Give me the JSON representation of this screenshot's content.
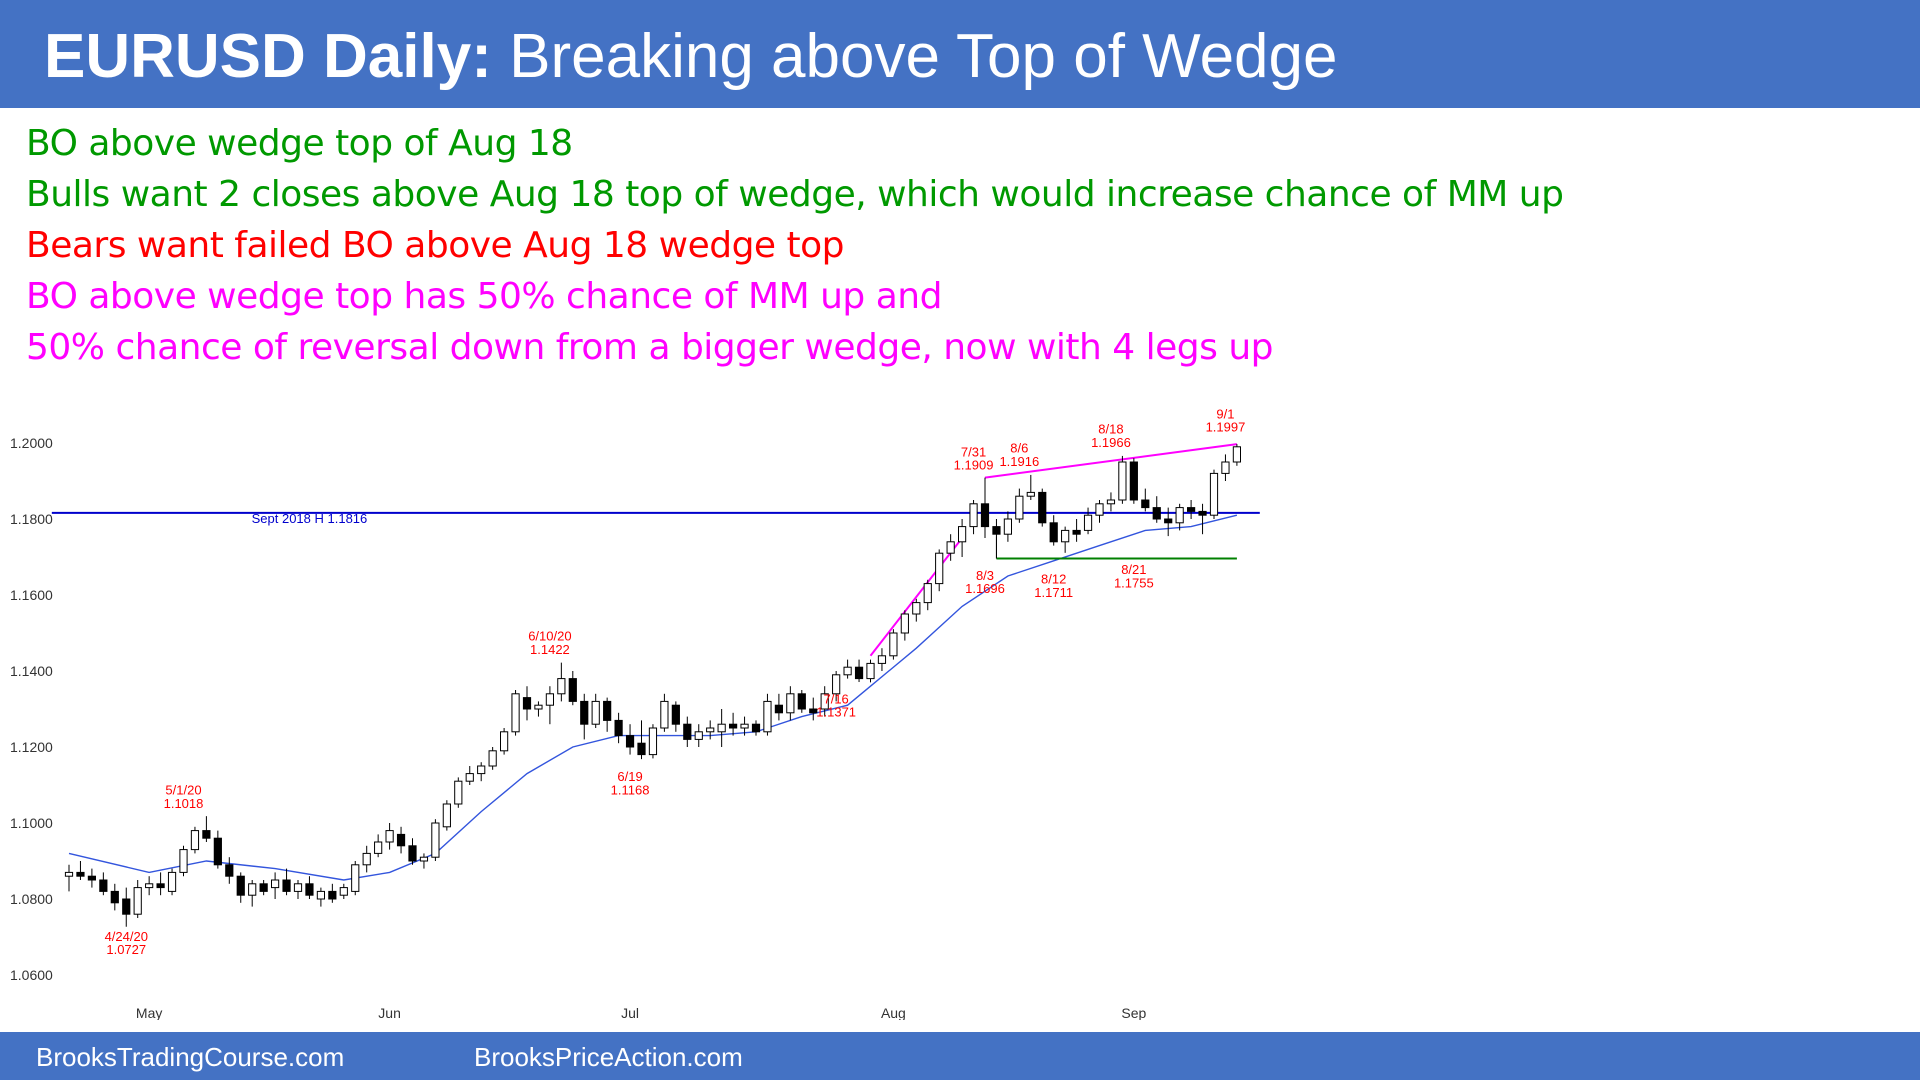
{
  "header": {
    "title_bold": "EURUSD Daily:",
    "title_rest": " Breaking above Top of Wedge",
    "bg_color": "#4472c4"
  },
  "notes": [
    {
      "text": "BO above wedge top of Aug 18",
      "color": "#009900"
    },
    {
      "text": "Bulls want  2 closes above Aug 18 top of wedge, which would increase chance of MM up",
      "color": "#009900"
    },
    {
      "text": "Bears want failed BO above Aug 18 wedge top",
      "color": "#ff0000"
    },
    {
      "text": "BO above wedge top has 50% chance of MM up and",
      "color": "#ff00ff"
    },
    {
      "text": "50% chance of reversal down from a bigger wedge, now with 4 legs up",
      "color": "#ff00ff"
    }
  ],
  "chart_data": {
    "type": "candlestick",
    "symbol": "EURUSD",
    "timeframe": "Daily",
    "ylim": [
      1.06,
      1.205
    ],
    "y_ticks": [
      "1.0600",
      "1.0800",
      "1.1000",
      "1.1200",
      "1.1400",
      "1.1600",
      "1.1800",
      "1.2000"
    ],
    "x_ticks": [
      {
        "label": "May",
        "bar": 7
      },
      {
        "label": "Jun",
        "bar": 28
      },
      {
        "label": "Jul",
        "bar": 49
      },
      {
        "label": "Aug",
        "bar": 72
      },
      {
        "label": "Sep",
        "bar": 93
      }
    ],
    "candles": [
      [
        1.086,
        1.089,
        1.082,
        1.087
      ],
      [
        1.087,
        1.09,
        1.085,
        1.086
      ],
      [
        1.086,
        1.088,
        1.083,
        1.085
      ],
      [
        1.085,
        1.087,
        1.081,
        1.082
      ],
      [
        1.082,
        1.084,
        1.077,
        1.079
      ],
      [
        1.08,
        1.083,
        1.0727,
        1.076
      ],
      [
        1.076,
        1.085,
        1.075,
        1.083
      ],
      [
        1.083,
        1.086,
        1.081,
        1.084
      ],
      [
        1.084,
        1.087,
        1.081,
        1.083
      ],
      [
        1.082,
        1.088,
        1.081,
        1.087
      ],
      [
        1.087,
        1.094,
        1.086,
        1.093
      ],
      [
        1.093,
        1.099,
        1.092,
        1.098
      ],
      [
        1.098,
        1.1018,
        1.095,
        1.096
      ],
      [
        1.096,
        1.098,
        1.088,
        1.089
      ],
      [
        1.089,
        1.091,
        1.084,
        1.086
      ],
      [
        1.086,
        1.087,
        1.079,
        1.081
      ],
      [
        1.081,
        1.085,
        1.078,
        1.084
      ],
      [
        1.084,
        1.085,
        1.081,
        1.082
      ],
      [
        1.083,
        1.087,
        1.08,
        1.085
      ],
      [
        1.085,
        1.088,
        1.081,
        1.082
      ],
      [
        1.082,
        1.085,
        1.08,
        1.084
      ],
      [
        1.084,
        1.086,
        1.08,
        1.081
      ],
      [
        1.08,
        1.083,
        1.078,
        1.082
      ],
      [
        1.082,
        1.084,
        1.079,
        1.08
      ],
      [
        1.081,
        1.084,
        1.08,
        1.083
      ],
      [
        1.082,
        1.09,
        1.081,
        1.089
      ],
      [
        1.089,
        1.094,
        1.087,
        1.092
      ],
      [
        1.092,
        1.097,
        1.091,
        1.095
      ],
      [
        1.095,
        1.1,
        1.093,
        1.098
      ],
      [
        1.097,
        1.099,
        1.092,
        1.094
      ],
      [
        1.094,
        1.096,
        1.089,
        1.09
      ],
      [
        1.09,
        1.092,
        1.088,
        1.091
      ],
      [
        1.091,
        1.101,
        1.09,
        1.1
      ],
      [
        1.099,
        1.106,
        1.098,
        1.105
      ],
      [
        1.105,
        1.112,
        1.104,
        1.111
      ],
      [
        1.111,
        1.115,
        1.11,
        1.113
      ],
      [
        1.113,
        1.116,
        1.111,
        1.115
      ],
      [
        1.115,
        1.12,
        1.114,
        1.119
      ],
      [
        1.119,
        1.125,
        1.118,
        1.124
      ],
      [
        1.124,
        1.135,
        1.123,
        1.134
      ],
      [
        1.133,
        1.136,
        1.127,
        1.13
      ],
      [
        1.13,
        1.132,
        1.128,
        1.131
      ],
      [
        1.131,
        1.136,
        1.126,
        1.134
      ],
      [
        1.134,
        1.1422,
        1.132,
        1.138
      ],
      [
        1.138,
        1.14,
        1.131,
        1.132
      ],
      [
        1.132,
        1.134,
        1.122,
        1.126
      ],
      [
        1.126,
        1.134,
        1.125,
        1.132
      ],
      [
        1.132,
        1.133,
        1.124,
        1.127
      ],
      [
        1.127,
        1.129,
        1.121,
        1.123
      ],
      [
        1.123,
        1.126,
        1.118,
        1.12
      ],
      [
        1.121,
        1.127,
        1.1168,
        1.118
      ],
      [
        1.118,
        1.126,
        1.117,
        1.125
      ],
      [
        1.125,
        1.134,
        1.124,
        1.132
      ],
      [
        1.131,
        1.132,
        1.124,
        1.126
      ],
      [
        1.126,
        1.128,
        1.12,
        1.122
      ],
      [
        1.122,
        1.126,
        1.12,
        1.124
      ],
      [
        1.124,
        1.127,
        1.122,
        1.125
      ],
      [
        1.124,
        1.13,
        1.12,
        1.126
      ],
      [
        1.126,
        1.129,
        1.123,
        1.125
      ],
      [
        1.125,
        1.128,
        1.123,
        1.126
      ],
      [
        1.126,
        1.127,
        1.123,
        1.124
      ],
      [
        1.124,
        1.134,
        1.123,
        1.132
      ],
      [
        1.131,
        1.134,
        1.127,
        1.129
      ],
      [
        1.129,
        1.136,
        1.127,
        1.134
      ],
      [
        1.134,
        1.135,
        1.129,
        1.13
      ],
      [
        1.13,
        1.133,
        1.127,
        1.129
      ],
      [
        1.13,
        1.136,
        1.128,
        1.134
      ],
      [
        1.134,
        1.14,
        1.132,
        1.139
      ],
      [
        1.139,
        1.143,
        1.138,
        1.141
      ],
      [
        1.141,
        1.143,
        1.1371,
        1.138
      ],
      [
        1.138,
        1.143,
        1.137,
        1.142
      ],
      [
        1.142,
        1.146,
        1.14,
        1.144
      ],
      [
        1.144,
        1.151,
        1.143,
        1.15
      ],
      [
        1.15,
        1.156,
        1.148,
        1.155
      ],
      [
        1.155,
        1.159,
        1.153,
        1.158
      ],
      [
        1.158,
        1.164,
        1.156,
        1.163
      ],
      [
        1.163,
        1.172,
        1.161,
        1.171
      ],
      [
        1.171,
        1.176,
        1.169,
        1.174
      ],
      [
        1.174,
        1.18,
        1.17,
        1.178
      ],
      [
        1.178,
        1.185,
        1.176,
        1.184
      ],
      [
        1.184,
        1.1909,
        1.175,
        1.178
      ],
      [
        1.178,
        1.18,
        1.1696,
        1.176
      ],
      [
        1.176,
        1.182,
        1.174,
        1.18
      ],
      [
        1.18,
        1.188,
        1.179,
        1.186
      ],
      [
        1.186,
        1.1916,
        1.185,
        1.187
      ],
      [
        1.187,
        1.188,
        1.178,
        1.179
      ],
      [
        1.179,
        1.181,
        1.173,
        1.174
      ],
      [
        1.174,
        1.178,
        1.1711,
        1.177
      ],
      [
        1.177,
        1.18,
        1.174,
        1.176
      ],
      [
        1.177,
        1.183,
        1.176,
        1.181
      ],
      [
        1.181,
        1.185,
        1.179,
        1.184
      ],
      [
        1.184,
        1.187,
        1.182,
        1.185
      ],
      [
        1.185,
        1.1966,
        1.184,
        1.195
      ],
      [
        1.195,
        1.196,
        1.184,
        1.185
      ],
      [
        1.185,
        1.188,
        1.182,
        1.183
      ],
      [
        1.183,
        1.186,
        1.179,
        1.18
      ],
      [
        1.18,
        1.183,
        1.1755,
        1.179
      ],
      [
        1.179,
        1.184,
        1.177,
        1.183
      ],
      [
        1.183,
        1.185,
        1.18,
        1.182
      ],
      [
        1.182,
        1.184,
        1.176,
        1.181
      ],
      [
        1.181,
        1.193,
        1.18,
        1.192
      ],
      [
        1.192,
        1.197,
        1.19,
        1.195
      ],
      [
        1.195,
        1.1997,
        1.194,
        1.199
      ]
    ],
    "moving_average": [
      [
        0,
        1.092
      ],
      [
        7,
        1.087
      ],
      [
        12,
        1.09
      ],
      [
        18,
        1.088
      ],
      [
        24,
        1.085
      ],
      [
        28,
        1.087
      ],
      [
        32,
        1.092
      ],
      [
        36,
        1.103
      ],
      [
        40,
        1.113
      ],
      [
        44,
        1.12
      ],
      [
        48,
        1.123
      ],
      [
        52,
        1.123
      ],
      [
        56,
        1.123
      ],
      [
        60,
        1.124
      ],
      [
        64,
        1.128
      ],
      [
        68,
        1.131
      ],
      [
        70,
        1.136
      ],
      [
        74,
        1.146
      ],
      [
        78,
        1.157
      ],
      [
        82,
        1.165
      ],
      [
        86,
        1.169
      ],
      [
        90,
        1.173
      ],
      [
        94,
        1.177
      ],
      [
        98,
        1.178
      ],
      [
        102,
        1.181
      ]
    ],
    "lines": [
      {
        "name": "sept-2018-high",
        "from": [
          -1.5,
          1.1816
        ],
        "to": [
          104,
          1.1816
        ],
        "color": "#0000cc"
      },
      {
        "name": "wedge-top-line",
        "from": [
          80,
          1.1909
        ],
        "to": [
          102,
          1.1997
        ],
        "color": "#ff00ff"
      },
      {
        "name": "rally-channel-line",
        "from": [
          70,
          1.144
        ],
        "to": [
          78,
          1.175
        ],
        "color": "#ff00ff"
      },
      {
        "name": "wedge-bottom-line",
        "from": [
          81,
          1.1696
        ],
        "to": [
          102,
          1.1696
        ],
        "color": "#008000"
      }
    ],
    "annotations": [
      {
        "text": "Sept 2018 H 1.1816",
        "bar": 21,
        "price": 1.179,
        "color": "#0000cc"
      },
      {
        "text": "4/24/20",
        "bar": 5,
        "price": 1.069,
        "color": "#ff0000"
      },
      {
        "text": "1.0727",
        "bar": 5,
        "price": 1.0655,
        "color": "#ff0000"
      },
      {
        "text": "5/1/20",
        "bar": 10,
        "price": 1.1075,
        "color": "#ff0000"
      },
      {
        "text": "1.1018",
        "bar": 10,
        "price": 1.104,
        "color": "#ff0000"
      },
      {
        "text": "6/10/20",
        "bar": 42,
        "price": 1.148,
        "color": "#ff0000"
      },
      {
        "text": "1.1422",
        "bar": 42,
        "price": 1.1445,
        "color": "#ff0000"
      },
      {
        "text": "6/19",
        "bar": 49,
        "price": 1.111,
        "color": "#ff0000"
      },
      {
        "text": "1.1168",
        "bar": 49,
        "price": 1.1075,
        "color": "#ff0000"
      },
      {
        "text": "7/16",
        "bar": 67,
        "price": 1.1315,
        "color": "#ff0000"
      },
      {
        "text": "1.1371",
        "bar": 67,
        "price": 1.128,
        "color": "#ff0000"
      },
      {
        "text": "7/31",
        "bar": 79,
        "price": 1.1965,
        "color": "#ff0000"
      },
      {
        "text": "1.1909",
        "bar": 79,
        "price": 1.193,
        "color": "#ff0000"
      },
      {
        "text": "8/6",
        "bar": 83,
        "price": 1.1975,
        "color": "#ff0000"
      },
      {
        "text": "1.1916",
        "bar": 83,
        "price": 1.194,
        "color": "#ff0000"
      },
      {
        "text": "8/18",
        "bar": 91,
        "price": 1.2025,
        "color": "#ff0000"
      },
      {
        "text": "1.1966",
        "bar": 91,
        "price": 1.199,
        "color": "#ff0000"
      },
      {
        "text": "9/1",
        "bar": 101,
        "price": 1.2065,
        "color": "#ff0000"
      },
      {
        "text": "1.1997",
        "bar": 101,
        "price": 1.203,
        "color": "#ff0000"
      },
      {
        "text": "8/3",
        "bar": 80,
        "price": 1.164,
        "color": "#ff0000"
      },
      {
        "text": "1.1696",
        "bar": 80,
        "price": 1.1605,
        "color": "#ff0000"
      },
      {
        "text": "8/12",
        "bar": 86,
        "price": 1.163,
        "color": "#ff0000"
      },
      {
        "text": "1.1711",
        "bar": 86,
        "price": 1.1595,
        "color": "#ff0000"
      },
      {
        "text": "8/21",
        "bar": 93,
        "price": 1.1655,
        "color": "#ff0000"
      },
      {
        "text": "1.1755",
        "bar": 93,
        "price": 1.162,
        "color": "#ff0000"
      }
    ]
  },
  "footer": {
    "left": "BrooksTradingCourse.com",
    "right": "BrooksPriceAction.com"
  }
}
